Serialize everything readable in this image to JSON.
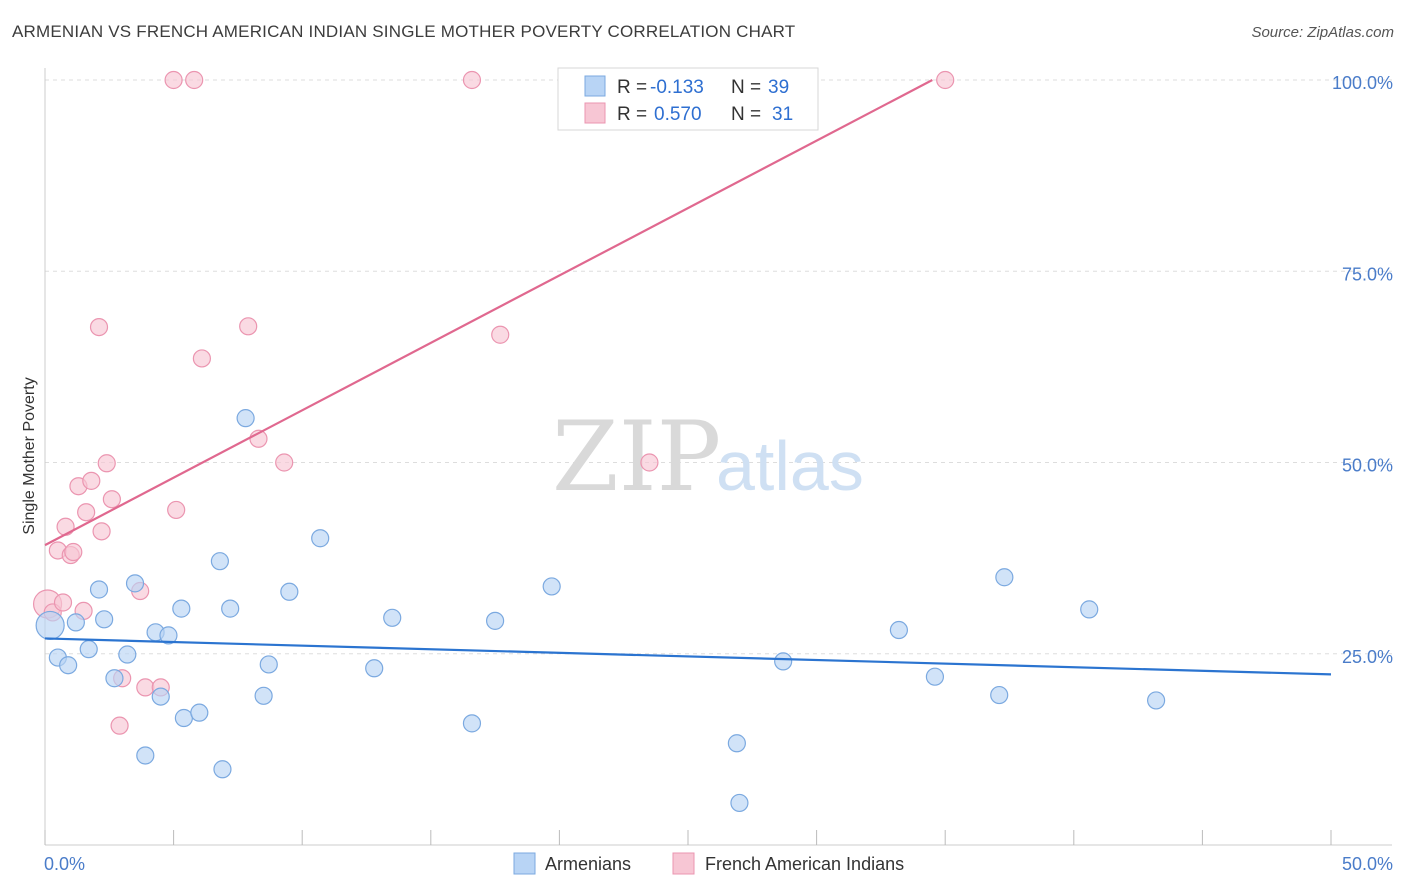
{
  "header": {
    "title": "ARMENIAN VS FRENCH AMERICAN INDIAN SINGLE MOTHER POVERTY CORRELATION CHART",
    "source": "Source: ZipAtlas.com"
  },
  "watermark": {
    "part1": "ZIP",
    "part2": "atlas"
  },
  "colors": {
    "armenians_fill": "#b8d4f5",
    "armenians_stroke": "#7ba9e0",
    "armenians_line": "#2b74d0",
    "french_fill": "#f7c6d4",
    "french_stroke": "#eb95b0",
    "french_line": "#e0688f",
    "tick_text": "#4a7cc9",
    "grid": "#dddddd"
  },
  "legend": {
    "rows": [
      {
        "r_label": "R =",
        "r_value": "-0.133",
        "n_label": "N =",
        "n_value": "39"
      },
      {
        "r_label": "R =",
        "r_value": "0.570",
        "n_label": "N =",
        "n_value": "31"
      }
    ]
  },
  "chart_data": {
    "type": "scatter",
    "title": "ARMENIAN VS FRENCH AMERICAN INDIAN SINGLE MOTHER POVERTY CORRELATION CHART",
    "xlabel": "",
    "ylabel": "Single Mother Poverty",
    "xlim": [
      0,
      50
    ],
    "ylim": [
      0,
      100
    ],
    "x_tick_labels": [
      "0.0%",
      "50.0%"
    ],
    "y_ticks": [
      25,
      50,
      75,
      100
    ],
    "y_tick_labels": [
      "25.0%",
      "50.0%",
      "75.0%",
      "100.0%"
    ],
    "grid": true,
    "legend_position": "top-center",
    "series": [
      {
        "name": "Armenians",
        "r": -0.133,
        "n": 39,
        "trend": [
          [
            0,
            27.0
          ],
          [
            50,
            22.3
          ]
        ],
        "points": [
          [
            0.2,
            28.7
          ],
          [
            0.5,
            24.5
          ],
          [
            0.9,
            23.5
          ],
          [
            1.2,
            29.1
          ],
          [
            1.7,
            25.6
          ],
          [
            2.1,
            33.4
          ],
          [
            2.3,
            29.5
          ],
          [
            2.7,
            21.8
          ],
          [
            3.2,
            24.9
          ],
          [
            3.5,
            34.2
          ],
          [
            3.9,
            11.7
          ],
          [
            4.3,
            27.8
          ],
          [
            4.5,
            19.4
          ],
          [
            4.8,
            27.4
          ],
          [
            5.3,
            30.9
          ],
          [
            5.4,
            16.6
          ],
          [
            6.0,
            17.3
          ],
          [
            6.8,
            37.1
          ],
          [
            6.9,
            9.9
          ],
          [
            7.2,
            30.9
          ],
          [
            7.8,
            55.8
          ],
          [
            8.5,
            19.5
          ],
          [
            8.7,
            23.6
          ],
          [
            9.5,
            33.1
          ],
          [
            10.7,
            40.1
          ],
          [
            12.8,
            23.1
          ],
          [
            13.5,
            29.7
          ],
          [
            16.6,
            15.9
          ],
          [
            17.5,
            29.3
          ],
          [
            19.7,
            33.8
          ],
          [
            26.9,
            13.3
          ],
          [
            27.0,
            5.5
          ],
          [
            28.7,
            24.0
          ],
          [
            33.2,
            28.1
          ],
          [
            34.6,
            22.0
          ],
          [
            37.1,
            19.6
          ],
          [
            37.3,
            35.0
          ],
          [
            40.6,
            30.8
          ],
          [
            43.2,
            18.9
          ]
        ]
      },
      {
        "name": "French American Indians",
        "r": 0.57,
        "n": 31,
        "trend": [
          [
            0,
            39.2
          ],
          [
            34.5,
            100
          ]
        ],
        "points": [
          [
            0.1,
            31.5
          ],
          [
            0.3,
            30.4
          ],
          [
            0.5,
            38.5
          ],
          [
            0.7,
            31.7
          ],
          [
            0.8,
            41.6
          ],
          [
            1.0,
            37.9
          ],
          [
            1.1,
            38.3
          ],
          [
            1.3,
            46.9
          ],
          [
            1.5,
            30.6
          ],
          [
            1.6,
            43.5
          ],
          [
            1.8,
            47.6
          ],
          [
            2.1,
            67.7
          ],
          [
            2.2,
            41.0
          ],
          [
            2.4,
            49.9
          ],
          [
            2.6,
            45.2
          ],
          [
            2.9,
            15.6
          ],
          [
            3.0,
            21.8
          ],
          [
            3.7,
            33.2
          ],
          [
            3.9,
            20.6
          ],
          [
            4.5,
            20.6
          ],
          [
            5.0,
            100
          ],
          [
            5.1,
            43.8
          ],
          [
            5.8,
            100
          ],
          [
            6.1,
            63.6
          ],
          [
            7.9,
            67.8
          ],
          [
            8.3,
            53.1
          ],
          [
            9.3,
            50.0
          ],
          [
            16.6,
            100
          ],
          [
            17.7,
            66.7
          ],
          [
            23.5,
            50.0
          ],
          [
            35.0,
            100
          ]
        ]
      }
    ]
  }
}
